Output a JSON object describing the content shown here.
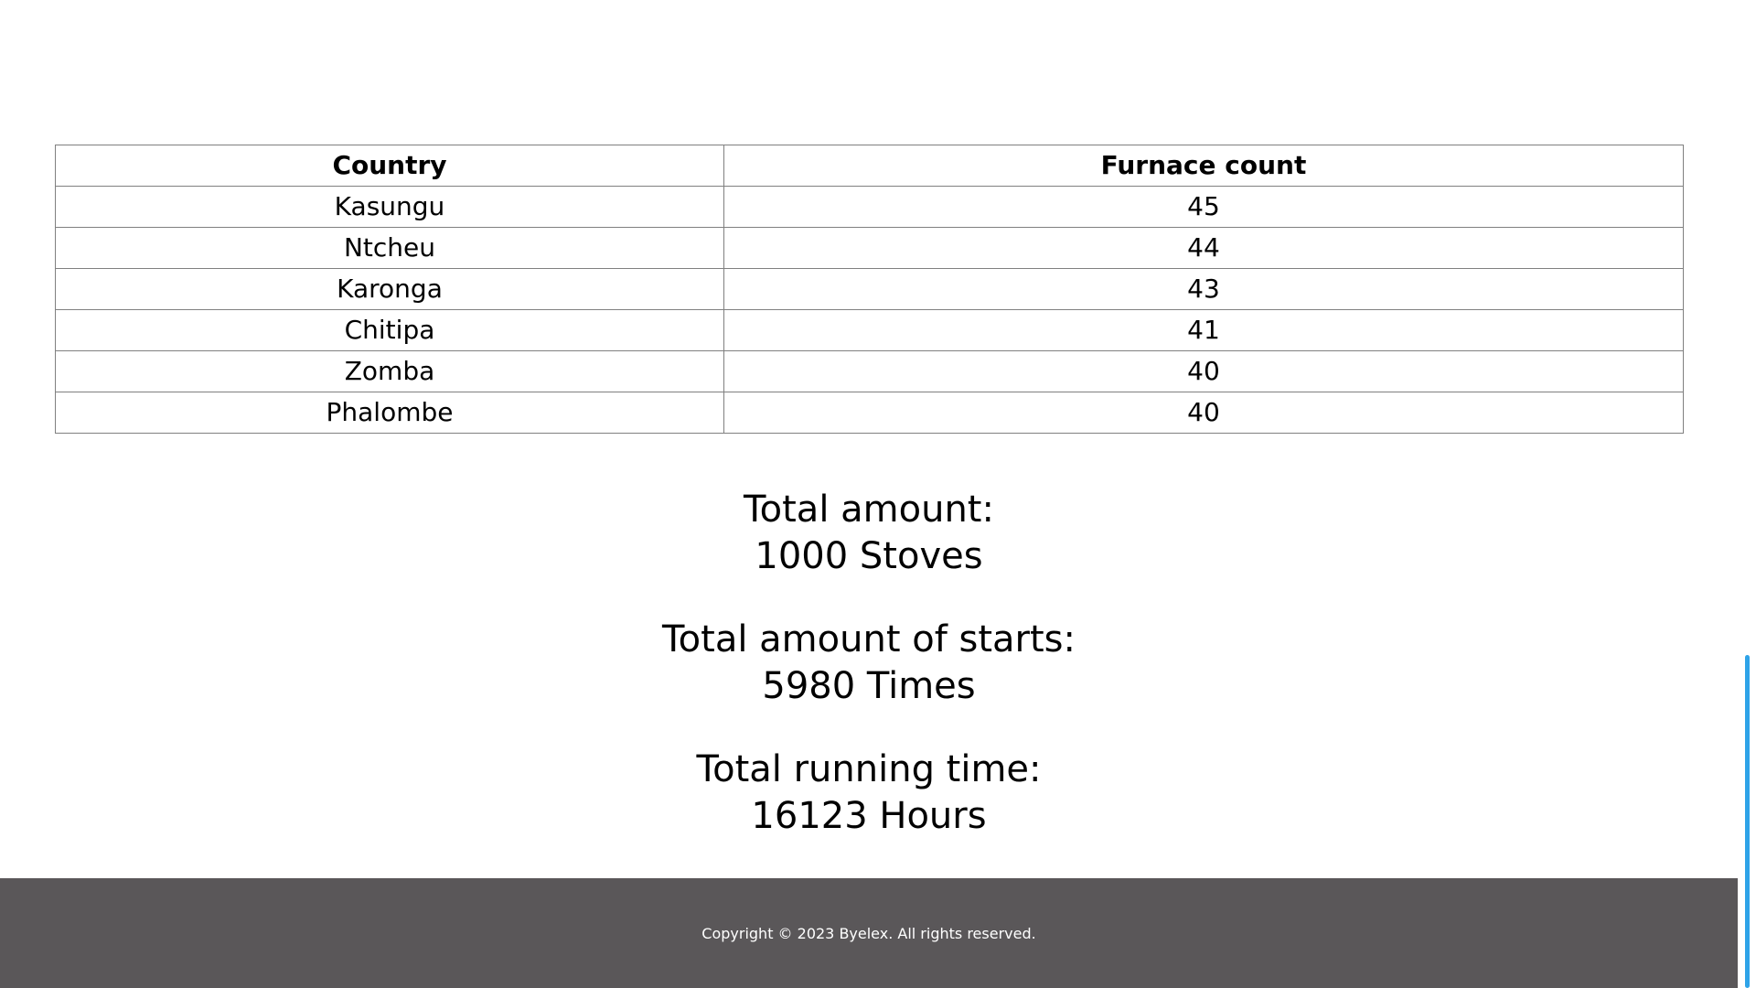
{
  "table": {
    "headers": {
      "country": "Country",
      "count": "Furnace count"
    },
    "rows": [
      {
        "country": "Kasungu",
        "count": "45"
      },
      {
        "country": "Ntcheu",
        "count": "44"
      },
      {
        "country": "Karonga",
        "count": "43"
      },
      {
        "country": "Chitipa",
        "count": "41"
      },
      {
        "country": "Zomba",
        "count": "40"
      },
      {
        "country": "Phalombe",
        "count": "40"
      }
    ]
  },
  "totals": {
    "amount": {
      "label": "Total amount:",
      "value": "1000 Stoves"
    },
    "starts": {
      "label": "Total amount of starts:",
      "value": "5980 Times"
    },
    "running_time": {
      "label": "Total running time:",
      "value": "16123 Hours"
    }
  },
  "footer": {
    "copyright": "Copyright © 2023 Byelex. All rights reserved."
  },
  "colors": {
    "footer_background": "#5a5759",
    "scrollbar_thumb": "#2ea3e8",
    "table_border": "#808080"
  }
}
